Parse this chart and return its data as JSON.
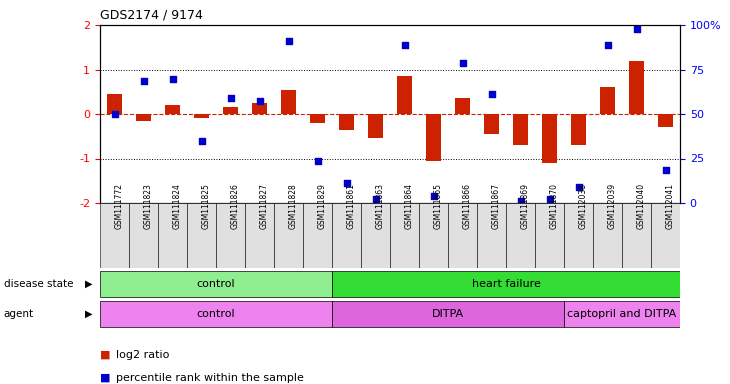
{
  "title": "GDS2174 / 9174",
  "samples": [
    "GSM111772",
    "GSM111823",
    "GSM111824",
    "GSM111825",
    "GSM111826",
    "GSM111827",
    "GSM111828",
    "GSM111829",
    "GSM111861",
    "GSM111863",
    "GSM111864",
    "GSM111865",
    "GSM111866",
    "GSM111867",
    "GSM111869",
    "GSM111870",
    "GSM112038",
    "GSM112039",
    "GSM112040",
    "GSM112041"
  ],
  "log2_ratio": [
    0.45,
    -0.15,
    0.2,
    -0.1,
    0.15,
    0.25,
    0.55,
    -0.2,
    -0.35,
    -0.55,
    0.85,
    -1.05,
    0.35,
    -0.45,
    -0.7,
    -1.1,
    -0.7,
    0.6,
    1.2,
    -0.3
  ],
  "percentile_rank": [
    0.0,
    0.75,
    0.78,
    -0.6,
    0.35,
    0.3,
    1.65,
    -1.05,
    -1.55,
    -1.9,
    1.55,
    -1.85,
    1.15,
    0.45,
    -1.95,
    -1.9,
    -1.65,
    1.55,
    1.9,
    -1.25
  ],
  "disease_state_groups": [
    {
      "label": "control",
      "start": 0,
      "end": 8,
      "color": "#90EE90"
    },
    {
      "label": "heart failure",
      "start": 8,
      "end": 20,
      "color": "#33DD33"
    }
  ],
  "agent_groups": [
    {
      "label": "control",
      "start": 0,
      "end": 8,
      "color": "#EE82EE"
    },
    {
      "label": "DITPA",
      "start": 8,
      "end": 16,
      "color": "#DD66DD"
    },
    {
      "label": "captopril and DITPA",
      "start": 16,
      "end": 20,
      "color": "#EE82EE"
    }
  ],
  "ylim": [
    -2,
    2
  ],
  "bar_color": "#CC2200",
  "dot_color": "#0000CC",
  "right_ytick_labels": [
    "0",
    "25",
    "50",
    "75",
    "100%"
  ],
  "background_color": "#ffffff"
}
